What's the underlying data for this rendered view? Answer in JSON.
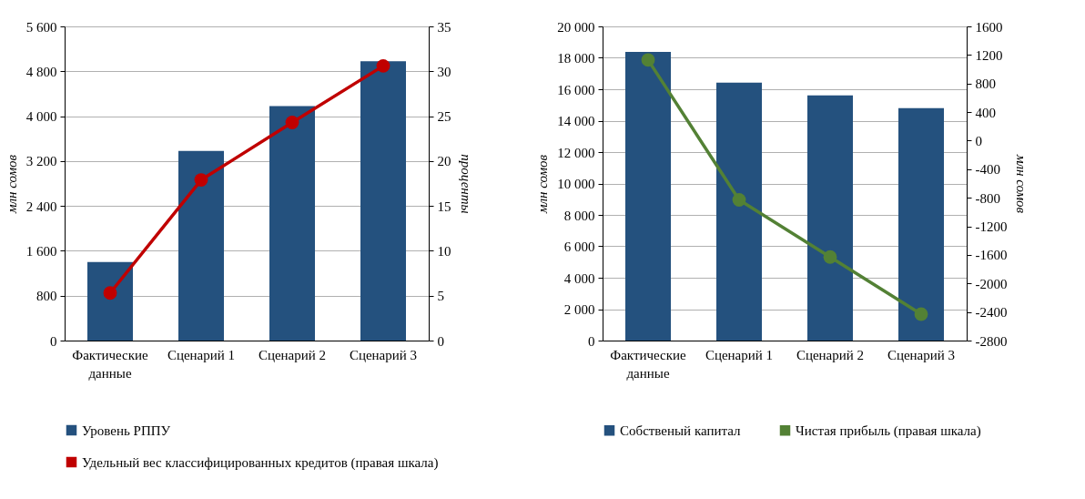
{
  "chart_data": [
    {
      "type": "bar",
      "categories": [
        "Фактические данные",
        "Сценарий 1",
        "Сценарий 2",
        "Сценарий 3"
      ],
      "ylabel": "млн сомов",
      "y2label": "проценты",
      "series": [
        {
          "name": "Уровень РППУ",
          "color": "#24517e",
          "values": [
            1400,
            3380,
            4180,
            4980
          ]
        },
        {
          "name": "Удельный вес классифицированных кредитов (правая шкала)",
          "type": "line",
          "axis": "y2",
          "color": "#c00000",
          "values": [
            5.3,
            17.9,
            24.3,
            30.6
          ]
        }
      ],
      "ylim": [
        0,
        5600
      ],
      "yticks": [
        0,
        {
          "value": 800,
          "label": "800"
        },
        {
          "value": 1600,
          "label": "1 600"
        },
        {
          "value": 2400,
          "label": "2 400"
        },
        {
          "value": 3200,
          "label": "3 200"
        },
        {
          "value": 4000,
          "label": "4 000"
        },
        {
          "value": 4800,
          "label": "4 800"
        },
        {
          "value": 5600,
          "label": "5 600"
        }
      ],
      "y2lim": [
        0,
        35
      ],
      "y2ticks": [
        0,
        5,
        10,
        15,
        20,
        25,
        30,
        35
      ],
      "grid": "y",
      "legend": "bottom",
      "marker": "circle"
    },
    {
      "type": "bar",
      "categories": [
        "Фактические данные",
        "Сценарий 1",
        "Сценарий 2",
        "Сценарий 3"
      ],
      "ylabel": "млн сомов",
      "y2label": "млн сомов",
      "series": [
        {
          "name": "Собственый капитал",
          "color": "#24517e",
          "values": [
            18380,
            16420,
            15610,
            14800
          ]
        },
        {
          "name": "Чистая прибыль (правая шкала)",
          "type": "line",
          "axis": "y2",
          "color": "#538135",
          "values": [
            1130,
            -830,
            -1630,
            -2430
          ]
        }
      ],
      "ylim": [
        0,
        20000
      ],
      "yticks": [
        0,
        {
          "value": 2000,
          "label": "2 000"
        },
        {
          "value": 4000,
          "label": "4 000"
        },
        {
          "value": 6000,
          "label": "6 000"
        },
        {
          "value": 8000,
          "label": "8 000"
        },
        {
          "value": 10000,
          "label": "10 000"
        },
        {
          "value": 12000,
          "label": "12 000"
        },
        {
          "value": 14000,
          "label": "14 000"
        },
        {
          "value": 16000,
          "label": "16 000"
        },
        {
          "value": 18000,
          "label": "18 000"
        },
        {
          "value": 20000,
          "label": "20 000"
        }
      ],
      "y2lim": [
        -2800,
        1600
      ],
      "y2ticks": [
        -2800,
        -2400,
        -2000,
        -1600,
        -1200,
        -800,
        -400,
        0,
        400,
        800,
        1200,
        1600
      ],
      "grid": "y",
      "legend": "bottom",
      "marker": "circle"
    }
  ]
}
